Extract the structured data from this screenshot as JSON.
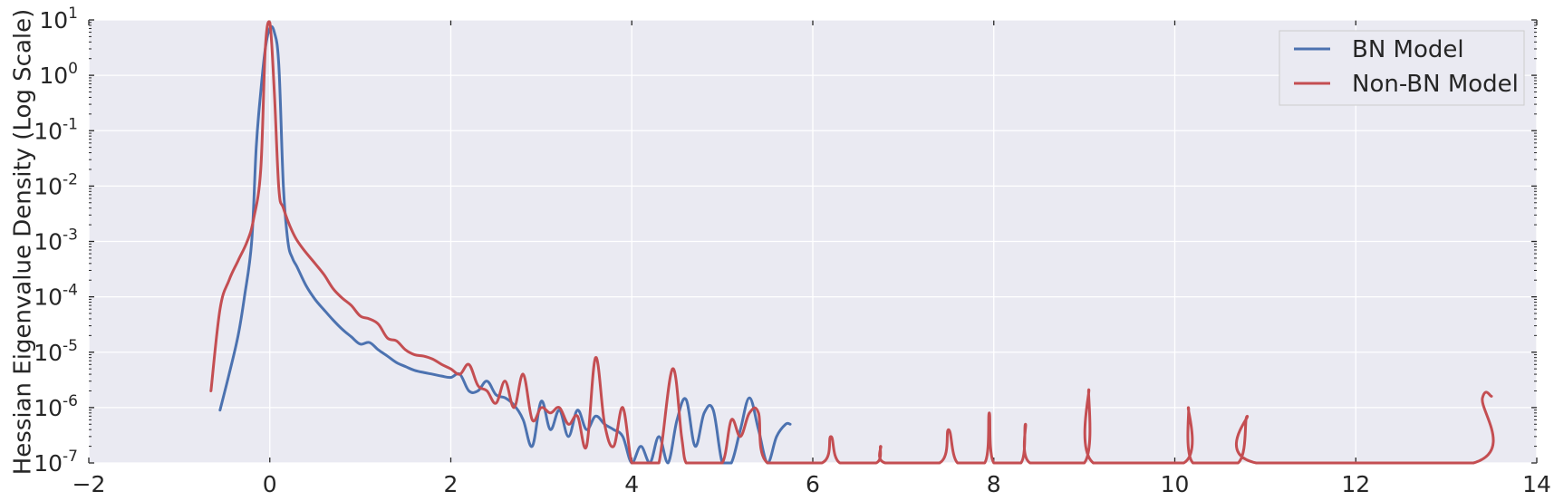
{
  "chart_data": {
    "type": "line",
    "title": "",
    "xlabel": "",
    "ylabel": "Hessian Eigenvalue Density (Log Scale)",
    "xlim": [
      -2,
      14
    ],
    "ylim": [
      1e-07,
      10
    ],
    "yscale": "log",
    "grid": true,
    "legend_position": "top-right",
    "x_ticks": [
      -2,
      0,
      2,
      4,
      6,
      8,
      10,
      12,
      14
    ],
    "y_ticks": [
      {
        "base": "10",
        "exp": "-7"
      },
      {
        "base": "10",
        "exp": "-6"
      },
      {
        "base": "10",
        "exp": "-5"
      },
      {
        "base": "10",
        "exp": "-4"
      },
      {
        "base": "10",
        "exp": "-3"
      },
      {
        "base": "10",
        "exp": "-2"
      },
      {
        "base": "10",
        "exp": "-1"
      },
      {
        "base": "10",
        "exp": "0"
      },
      {
        "base": "10",
        "exp": "1"
      }
    ],
    "series": [
      {
        "name": "BN Model",
        "color": "#4c72b0",
        "x": [
          -0.55,
          -0.45,
          -0.35,
          -0.28,
          -0.2,
          -0.15,
          -0.1,
          -0.05,
          0.0,
          0.05,
          0.1,
          0.15,
          0.2,
          0.25,
          0.3,
          0.4,
          0.5,
          0.6,
          0.7,
          0.8,
          0.9,
          1.0,
          1.1,
          1.2,
          1.3,
          1.4,
          1.5,
          1.6,
          1.7,
          1.8,
          1.9,
          2.0,
          2.1,
          2.2,
          2.3,
          2.4,
          2.5,
          2.6,
          2.7,
          2.8,
          2.9,
          3.0,
          3.1,
          3.2,
          3.3,
          3.4,
          3.5,
          3.6,
          3.7,
          3.8,
          3.9,
          4.0,
          4.1,
          4.2,
          4.3,
          4.4,
          4.5,
          4.6,
          4.7,
          4.8,
          4.9,
          5.0,
          5.1,
          5.2,
          5.3,
          5.4,
          5.5,
          5.6,
          5.7,
          5.75
        ],
        "y": [
          9e-07,
          4e-06,
          2e-05,
          0.0001,
          0.001,
          0.05,
          0.5,
          3,
          7,
          6,
          1.5,
          0.01,
          0.001,
          0.0005,
          0.00035,
          0.00016,
          9e-05,
          5.8e-05,
          3.8e-05,
          2.6e-05,
          1.9e-05,
          1.4e-05,
          1.5e-05,
          1.1e-05,
          8.5e-06,
          6.5e-06,
          5.5e-06,
          4.7e-06,
          4.3e-06,
          4e-06,
          3.7e-06,
          3.5e-06,
          4e-06,
          2e-06,
          2e-06,
          3e-06,
          1.7e-06,
          1.5e-06,
          1.1e-06,
          6e-07,
          2e-07,
          1.3e-06,
          4e-07,
          9e-07,
          3e-07,
          9e-07,
          4e-07,
          7e-07,
          5e-07,
          4e-07,
          3e-07,
          1e-07,
          2e-07,
          1e-07,
          3e-07,
          1e-07,
          6e-07,
          1.4e-06,
          2e-07,
          8e-07,
          9e-07,
          1e-07,
          1e-07,
          4e-07,
          1.5e-06,
          4e-07,
          1e-07,
          3e-07,
          5e-07,
          5e-07
        ]
      },
      {
        "name": "Non-BN Model",
        "color": "#c44e52",
        "x": [
          -0.65,
          -0.55,
          -0.45,
          -0.35,
          -0.25,
          -0.18,
          -0.1,
          -0.05,
          0.0,
          0.05,
          0.1,
          0.15,
          0.25,
          0.35,
          0.5,
          0.6,
          0.7,
          0.8,
          0.9,
          1.0,
          1.1,
          1.2,
          1.3,
          1.4,
          1.5,
          1.6,
          1.7,
          1.8,
          1.9,
          2.0,
          2.1,
          2.2,
          2.3,
          2.4,
          2.5,
          2.6,
          2.7,
          2.8,
          2.9,
          3.0,
          3.1,
          3.2,
          3.3,
          3.4,
          3.5,
          3.6,
          3.7,
          3.8,
          3.9,
          4.0,
          4.1,
          4.2,
          4.3,
          4.45,
          4.55,
          4.6,
          4.7,
          4.8,
          5.0,
          5.1,
          5.2,
          5.3,
          5.4,
          5.5,
          6.1,
          6.2,
          6.3,
          6.7,
          6.75,
          6.8,
          7.4,
          7.5,
          7.6,
          7.9,
          7.95,
          8.0,
          8.3,
          8.35,
          8.4,
          9.0,
          9.05,
          9.1,
          10.1,
          10.15,
          10.2,
          10.7,
          10.8,
          10.9,
          13.3,
          13.4,
          13.5
        ],
        "y": [
          2e-06,
          6e-05,
          0.0002,
          0.00045,
          0.001,
          0.0025,
          0.02,
          3,
          9,
          0.5,
          0.009,
          0.004,
          0.0015,
          0.0008,
          0.0004,
          0.00025,
          0.00014,
          9.5e-05,
          7e-05,
          4.5e-05,
          4e-05,
          3.2e-05,
          1.8e-05,
          1.6e-05,
          1.1e-05,
          9e-06,
          8.5e-06,
          7.5e-06,
          6e-06,
          5e-06,
          4e-06,
          6e-06,
          2.5e-06,
          2e-06,
          1.2e-06,
          3e-06,
          1e-06,
          4e-06,
          6e-07,
          1e-06,
          8e-07,
          1e-06,
          5e-07,
          7e-07,
          2e-07,
          8e-06,
          5e-07,
          2e-07,
          1e-06,
          1e-07,
          1e-07,
          1e-07,
          1e-07,
          5e-06,
          3e-07,
          1e-07,
          1e-07,
          1e-07,
          1e-07,
          6e-07,
          3e-07,
          8e-07,
          8e-07,
          1e-07,
          1e-07,
          3e-07,
          1e-07,
          1e-07,
          2e-07,
          1e-07,
          1e-07,
          4e-07,
          1e-07,
          1e-07,
          8e-07,
          1e-07,
          1e-07,
          5e-07,
          1e-07,
          1e-07,
          2.1e-06,
          1e-07,
          1e-07,
          1e-06,
          1e-07,
          1e-07,
          7e-07,
          1e-07,
          1e-07,
          1.5e-06,
          1.6e-06
        ]
      }
    ]
  }
}
